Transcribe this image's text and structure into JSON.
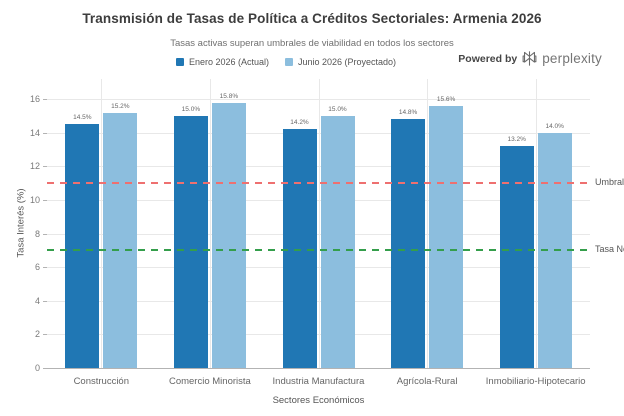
{
  "title": "Transmisión de Tasas de Política a Créditos Sectoriales: Armenia 2026",
  "subtitle": "Tasas activas superan umbrales de viabilidad en todos los sectores",
  "legend": [
    {
      "label": "Enero 2026 (Actual)",
      "color": "#2077b4"
    },
    {
      "label": "Junio 2026 (Proyectado)",
      "color": "#8cbede"
    }
  ],
  "powered_by": {
    "prefix": "Powered by",
    "brand": "perplexity"
  },
  "chart_data": {
    "type": "bar",
    "title": "Transmisión de Tasas de Política a Créditos Sectoriales: Armenia 2026",
    "subtitle": "Tasas activas superan umbrales de viabilidad en todos los sectores",
    "categories": [
      "Construcción",
      "Comercio Minorista",
      "Industria Manufactura",
      "Agrícola-Rural",
      "Inmobiliario-Hipotecario"
    ],
    "series": [
      {
        "name": "Enero 2026 (Actual)",
        "color": "#2077b4",
        "values": [
          14.5,
          15.0,
          14.2,
          14.8,
          13.2
        ],
        "labels": [
          "14.5%",
          "15.0%",
          "14.2%",
          "14.8%",
          "13.2%"
        ]
      },
      {
        "name": "Junio 2026 (Proyectado)",
        "color": "#8cbede",
        "values": [
          15.2,
          15.8,
          15.0,
          15.6,
          14.0
        ],
        "labels": [
          "15.2%",
          "15.8%",
          "15.0%",
          "15.6%",
          "14.0%"
        ]
      }
    ],
    "xlabel": "Sectores Económicos",
    "ylabel": "Tasa Interés (%)",
    "yticks": [
      0,
      2,
      4,
      6,
      8,
      10,
      12,
      14,
      16
    ],
    "ylim": [
      0,
      17.2
    ],
    "grid": true,
    "legend_position": "top",
    "reference_lines": [
      {
        "label": "Umbral",
        "value": 11,
        "color": "#ee7070",
        "style": "dashed"
      },
      {
        "label": "Tasa Ne",
        "value": 7,
        "color": "#349e4b",
        "style": "dashed"
      }
    ]
  }
}
